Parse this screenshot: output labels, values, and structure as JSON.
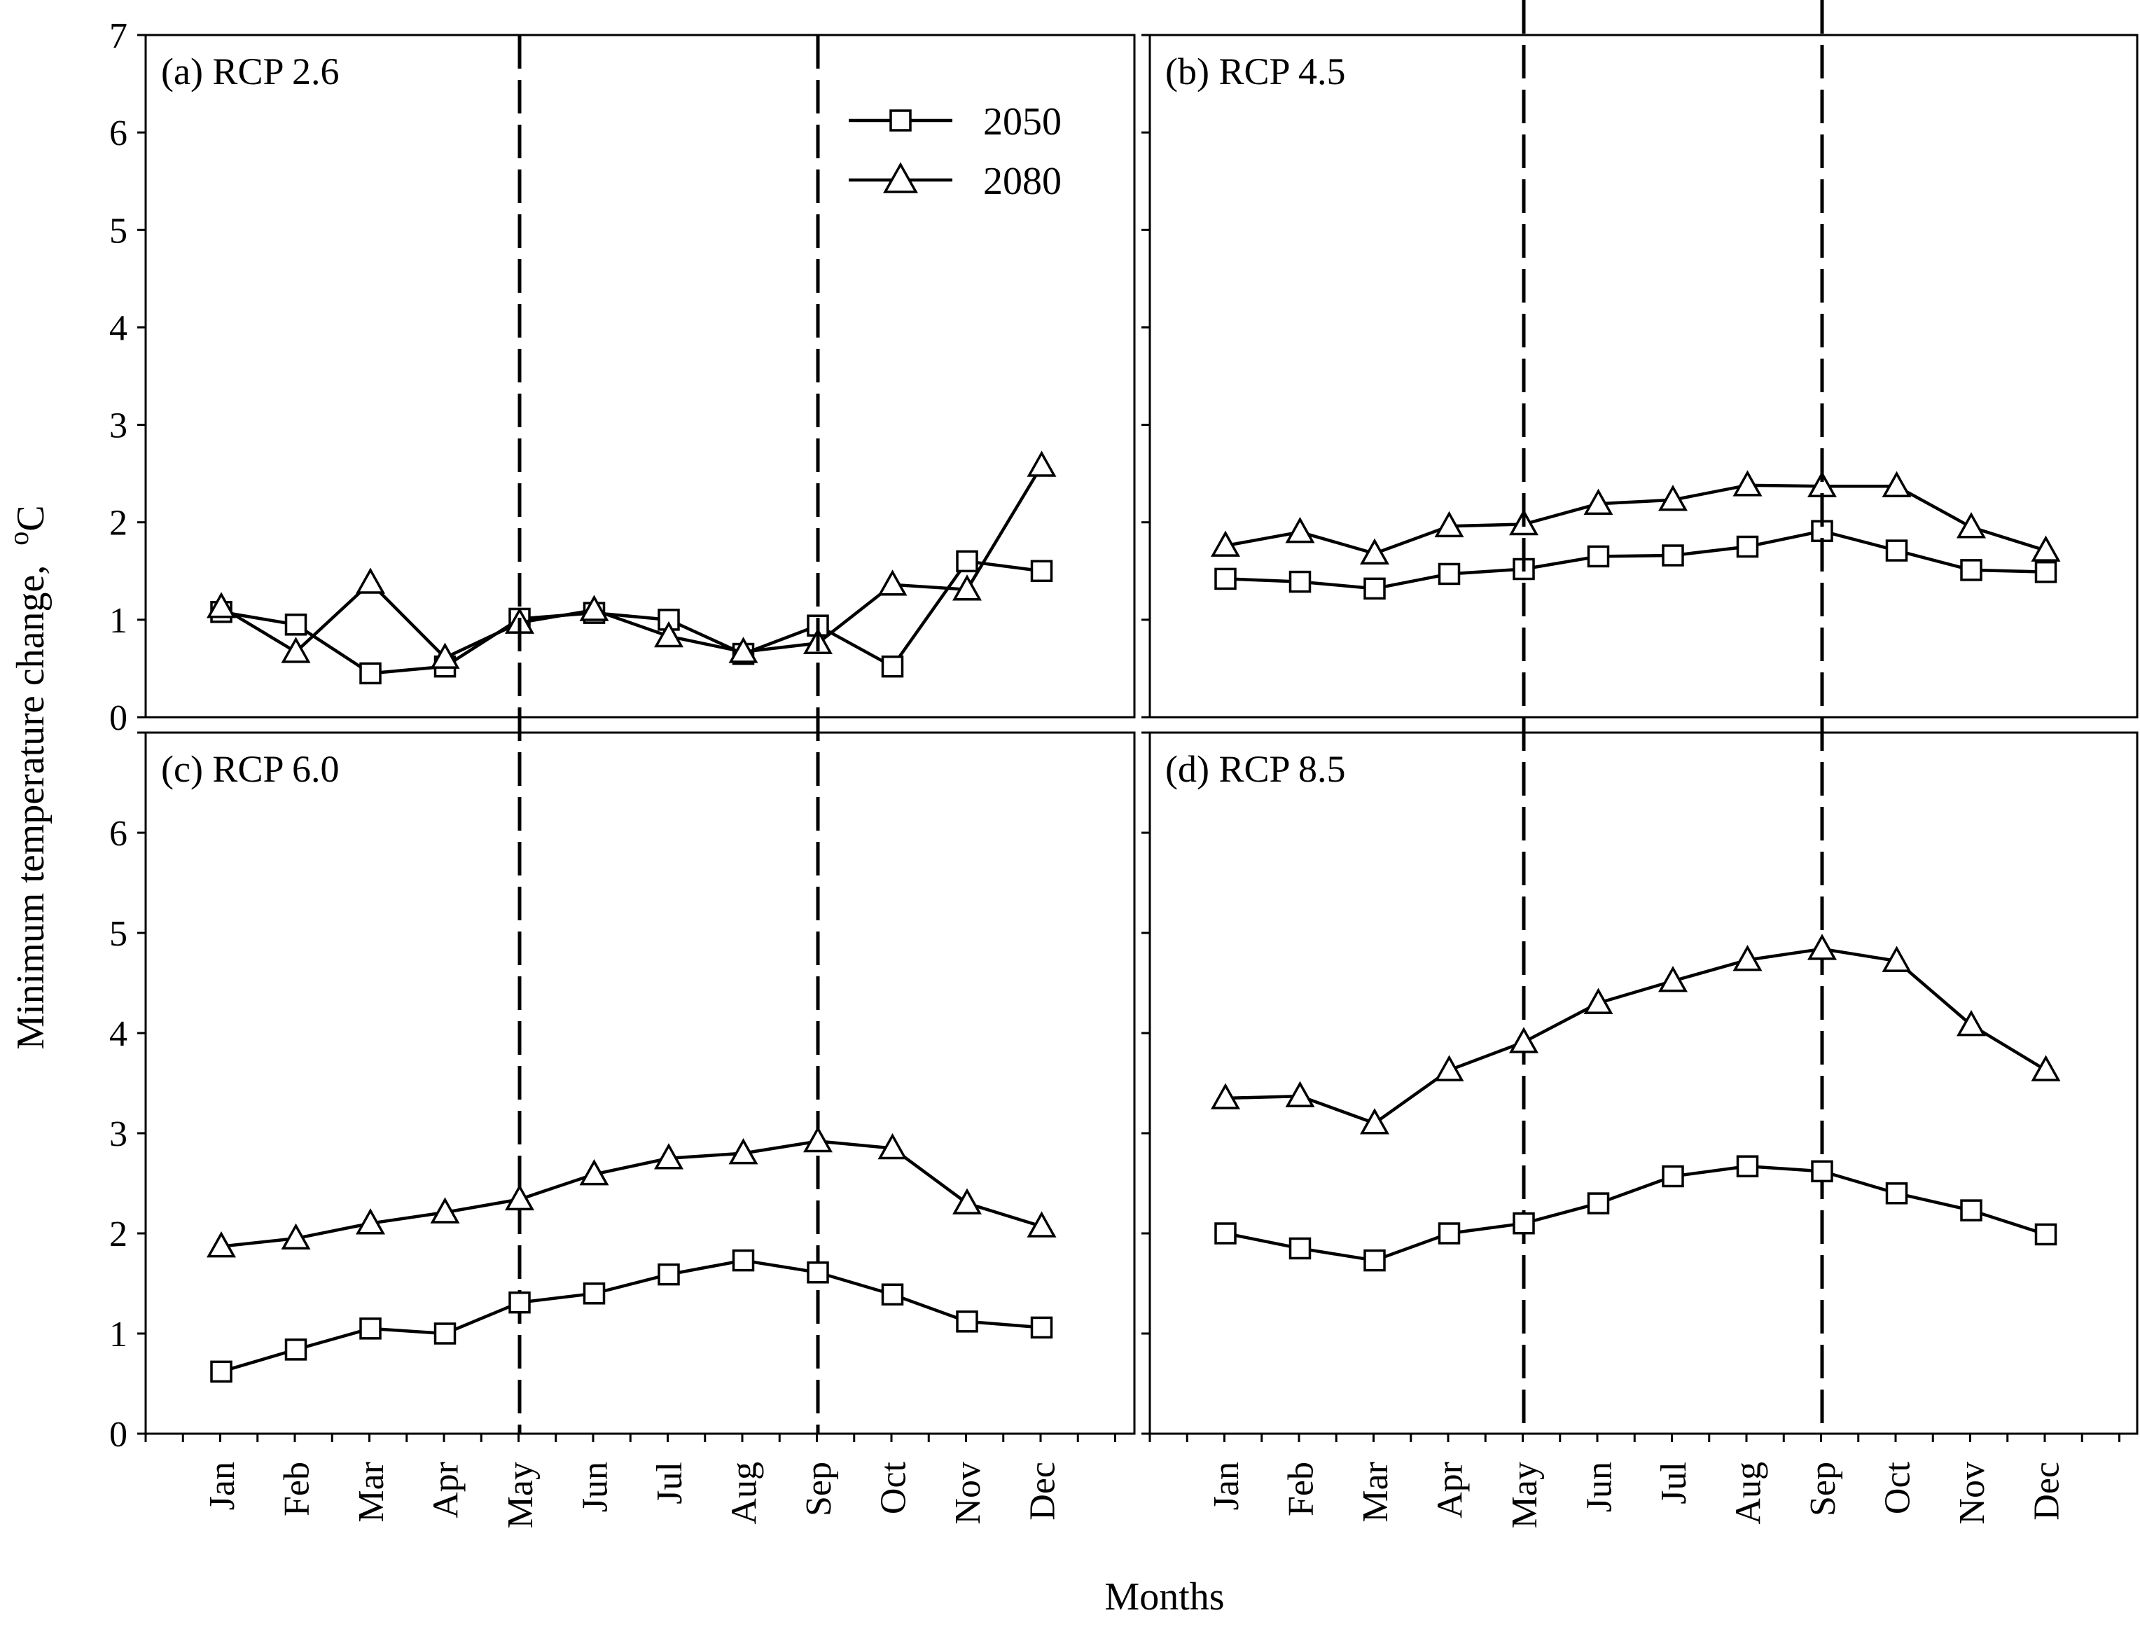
{
  "chart_data": {
    "type": "line",
    "ylabel": "Minimum temperature change,",
    "ylabel_unit": "oC",
    "xlabel": "Months",
    "ylim": [
      0,
      7
    ],
    "yticks": [
      0,
      1,
      2,
      3,
      4,
      5,
      6,
      7
    ],
    "categories": [
      "Jan",
      "Feb",
      "Mar",
      "Apr",
      "May",
      "Jun",
      "Jul",
      "Aug",
      "Sep",
      "Oct",
      "Nov",
      "Dec"
    ],
    "reference_lines": [
      "May",
      "Sep"
    ],
    "legend": {
      "position": "top-right of panel (a)",
      "entries": [
        {
          "name": "2050",
          "marker": "square"
        },
        {
          "name": "2080",
          "marker": "triangle"
        }
      ]
    },
    "panels": [
      {
        "title": "(a) RCP 2.6",
        "series": [
          {
            "name": "2050",
            "marker": "square",
            "values": [
              1.08,
              0.95,
              0.45,
              0.52,
              1.01,
              1.07,
              1.0,
              0.65,
              0.94,
              0.52,
              1.6,
              1.5
            ]
          },
          {
            "name": "2080",
            "marker": "triangle",
            "values": [
              1.13,
              0.67,
              1.38,
              0.61,
              0.97,
              1.1,
              0.83,
              0.67,
              0.76,
              1.36,
              1.31,
              2.58
            ]
          }
        ]
      },
      {
        "title": "(b) RCP 4.5",
        "series": [
          {
            "name": "2050",
            "marker": "square",
            "values": [
              1.42,
              1.39,
              1.32,
              1.47,
              1.52,
              1.65,
              1.66,
              1.75,
              1.91,
              1.71,
              1.51,
              1.49
            ]
          },
          {
            "name": "2080",
            "marker": "triangle",
            "values": [
              1.76,
              1.9,
              1.68,
              1.96,
              1.98,
              2.19,
              2.23,
              2.38,
              2.37,
              2.37,
              1.95,
              1.71
            ]
          }
        ]
      },
      {
        "title": "(c) RCP 6.0",
        "series": [
          {
            "name": "2050",
            "marker": "square",
            "values": [
              0.62,
              0.84,
              1.05,
              1.0,
              1.31,
              1.4,
              1.59,
              1.73,
              1.61,
              1.39,
              1.12,
              1.06
            ]
          },
          {
            "name": "2080",
            "marker": "triangle",
            "values": [
              1.87,
              1.95,
              2.1,
              2.21,
              2.34,
              2.59,
              2.75,
              2.8,
              2.92,
              2.85,
              2.3,
              2.07
            ]
          }
        ]
      },
      {
        "title": "(d) RCP 8.5",
        "series": [
          {
            "name": "2050",
            "marker": "square",
            "values": [
              2.0,
              1.85,
              1.73,
              2.0,
              2.1,
              2.3,
              2.57,
              2.67,
              2.62,
              2.4,
              2.23,
              1.99
            ]
          },
          {
            "name": "2080",
            "marker": "triangle",
            "values": [
              3.35,
              3.37,
              3.1,
              3.63,
              3.91,
              4.3,
              4.52,
              4.73,
              4.84,
              4.72,
              4.08,
              3.63
            ]
          }
        ]
      }
    ]
  }
}
